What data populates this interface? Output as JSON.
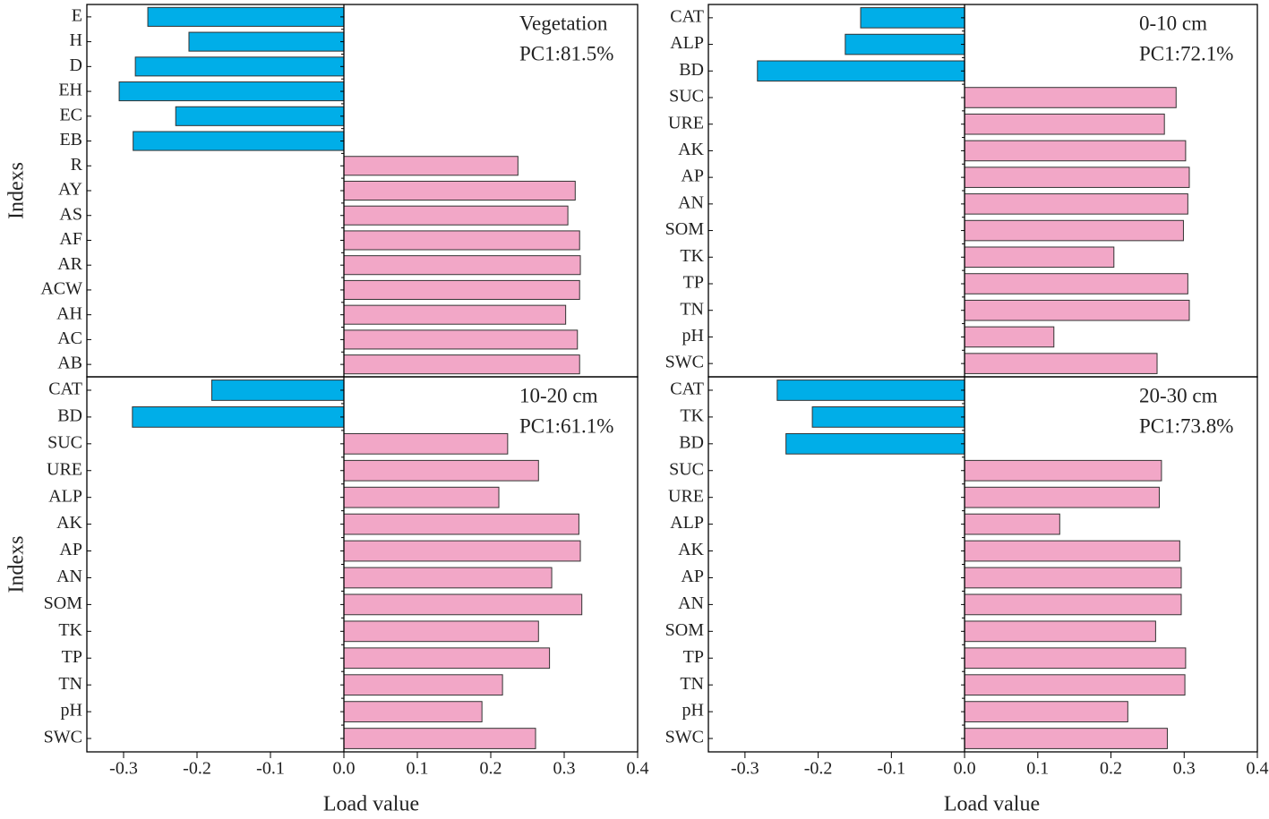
{
  "chart_data": [
    {
      "type": "hbar",
      "ylabel": "Indexs",
      "annotation": [
        "Vegetation",
        "PC1:81.5%"
      ],
      "categories": [
        "E",
        "H",
        "D",
        "EH",
        "EC",
        "EB",
        "R",
        "AY",
        "AS",
        "AF",
        "AR",
        "ACW",
        "AH",
        "AC",
        "AB"
      ],
      "values": [
        -0.267,
        -0.211,
        -0.284,
        -0.306,
        -0.229,
        -0.287,
        0.237,
        0.315,
        0.305,
        0.321,
        0.322,
        0.321,
        0.302,
        0.318,
        0.321
      ],
      "negative_color": "#00aee8",
      "positive_color": "#f2a7c7",
      "xlim": [
        -0.35,
        0.4
      ]
    },
    {
      "type": "hbar",
      "annotation": [
        "0-10 cm",
        "PC1:72.1%"
      ],
      "categories": [
        "CAT",
        "ALP",
        "BD",
        "SUC",
        "URE",
        "AK",
        "AP",
        "AN",
        "SOM",
        "TK",
        "TP",
        "TN",
        "pH",
        "SWC"
      ],
      "values": [
        -0.142,
        -0.163,
        -0.283,
        0.289,
        0.273,
        0.302,
        0.307,
        0.305,
        0.299,
        0.204,
        0.305,
        0.307,
        0.122,
        0.263
      ],
      "negative_color": "#00aee8",
      "positive_color": "#f2a7c7",
      "xlim": [
        -0.35,
        0.4
      ]
    },
    {
      "type": "hbar",
      "ylabel": "Indexs",
      "xlabel": "Load value",
      "annotation": [
        "10-20 cm",
        "PC1:61.1%"
      ],
      "categories": [
        "CAT",
        "BD",
        "SUC",
        "URE",
        "ALP",
        "AK",
        "AP",
        "AN",
        "SOM",
        "TK",
        "TP",
        "TN",
        "pH",
        "SWC"
      ],
      "values": [
        -0.18,
        -0.288,
        0.223,
        0.265,
        0.211,
        0.32,
        0.322,
        0.283,
        0.324,
        0.265,
        0.28,
        0.216,
        0.188,
        0.261
      ],
      "negative_color": "#00aee8",
      "positive_color": "#f2a7c7",
      "xlim": [
        -0.35,
        0.4
      ],
      "xticks": [
        -0.3,
        -0.2,
        -0.1,
        {
          "value": 0,
          "label": "0.0"
        },
        0.1,
        0.2,
        0.3,
        0.4
      ]
    },
    {
      "type": "hbar",
      "xlabel": "Load value",
      "annotation": [
        "20-30 cm",
        "PC1:73.8%"
      ],
      "categories": [
        "CAT",
        "TK",
        "BD",
        "SUC",
        "URE",
        "ALP",
        "AK",
        "AP",
        "AN",
        "SOM",
        "TP",
        "TN",
        "pH",
        "SWC"
      ],
      "values": [
        -0.256,
        -0.208,
        -0.244,
        0.269,
        0.266,
        0.13,
        0.294,
        0.296,
        0.296,
        0.261,
        0.302,
        0.301,
        0.223,
        0.277
      ],
      "negative_color": "#00aee8",
      "positive_color": "#f2a7c7",
      "xlim": [
        -0.35,
        0.4
      ],
      "xticks": [
        -0.3,
        -0.2,
        -0.1,
        {
          "value": 0,
          "label": "0.0"
        },
        0.1,
        0.2,
        0.3,
        0.4
      ]
    }
  ]
}
